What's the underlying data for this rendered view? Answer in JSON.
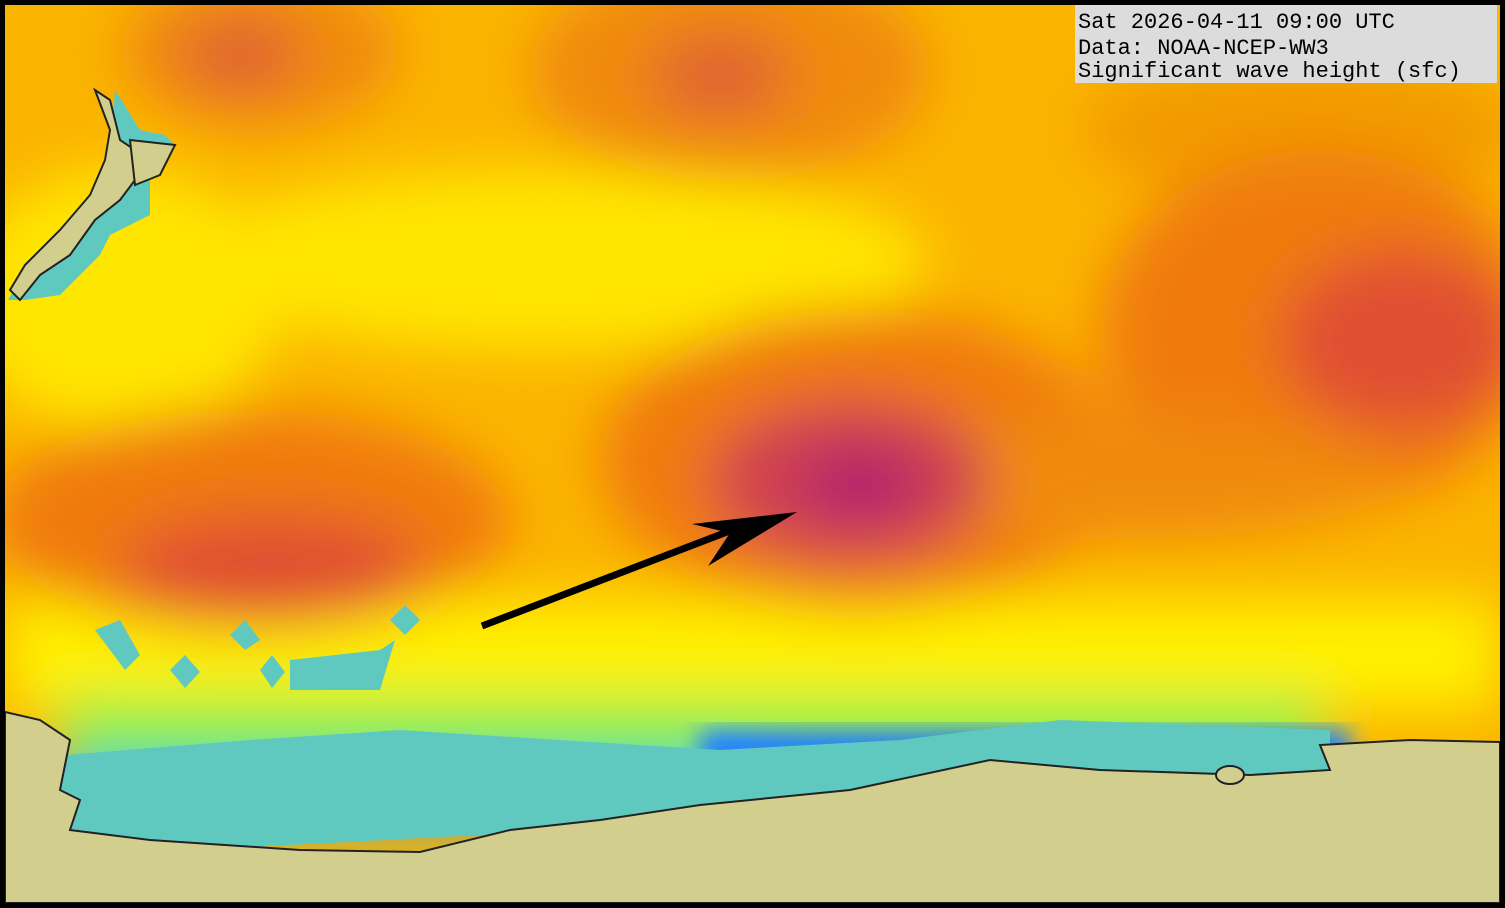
{
  "info": {
    "datetime": "Sat 2026-04-11 09:00 UTC",
    "source": "Data: NOAA-NCEP-WW3",
    "field": "Significant wave height (sfc)"
  }
}
